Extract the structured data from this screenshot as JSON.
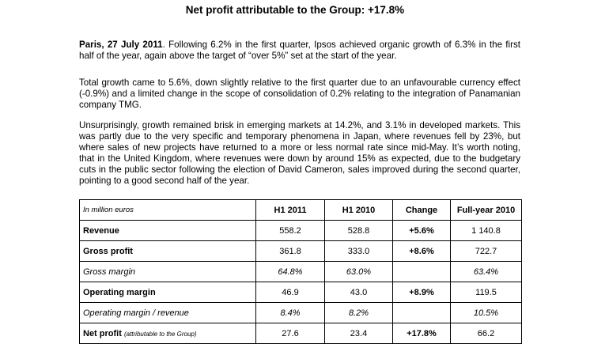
{
  "header": {
    "title": "Net profit attributable to the Group: +17.8%"
  },
  "paragraphs": [
    {
      "lead": "Paris, 27 July 2011",
      "text": ". Following 6.2% in the first quarter, Ipsos achieved organic growth of 6.3% in the first half of the year, again above the target of “over 5%” set at the start of the year."
    },
    {
      "text": "Total growth came to 5.6%, down slightly relative to the first quarter due to an unfavourable currency effect (-0.9%) and a limited change in the scope of consolidation of 0.2% relating to the integration of Panamanian company TMG."
    },
    {
      "text": "Unsurprisingly, growth remained brisk in emerging markets at 14.2%, and 3.1% in developed markets. This was partly due to the very specific and temporary phenomena in Japan, where revenues fell by 23%, but where sales of new projects have returned to a more or less normal rate since mid-May. It’s worth noting, that in the United Kingdom, where revenues were down by around 15% as expected, due to the budgetary cuts in the public sector following the election of David Cameron, sales improved during the second quarter, pointing to a good second half of the year."
    }
  ],
  "table": {
    "columns": [
      "In million euros",
      "H1 2011",
      "H1 2010",
      "Change",
      "Full-year 2010"
    ],
    "rows": [
      {
        "label": "Revenue",
        "style": "bold",
        "cells": [
          "558.2",
          "528.8",
          "+5.6%",
          "1 140.8"
        ]
      },
      {
        "label": "Gross profit",
        "style": "bold",
        "cells": [
          "361.8",
          "333.0",
          "+8.6%",
          "722.7"
        ]
      },
      {
        "label": "Gross margin",
        "style": "italic",
        "cells": [
          "64.8%",
          "63.0%",
          null,
          "63.4%"
        ]
      },
      {
        "label": "Operating margin",
        "style": "bold",
        "cells": [
          "46.9",
          "43.0",
          "+8.9%",
          "119.5"
        ]
      },
      {
        "label": "Operating margin / revenue",
        "style": "italic",
        "cells": [
          "8.4%",
          "8.2%",
          null,
          "10.5%"
        ]
      },
      {
        "label": "Net profit",
        "note": "(attributable to the Group)",
        "style": "bold",
        "cells": [
          "27.6",
          "23.4",
          "+17.8%",
          "66.2"
        ]
      }
    ]
  }
}
